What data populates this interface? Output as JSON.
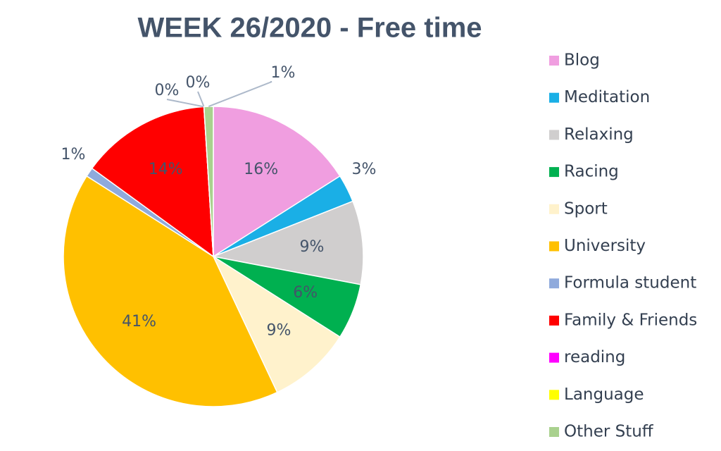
{
  "chart_data": {
    "type": "pie",
    "title": "WEEK 26/2020 - Free time",
    "categories": [
      "Blog",
      "Meditation",
      "Relaxing",
      "Racing",
      "Sport",
      "University",
      "Formula student",
      "Family & Friends",
      "reading",
      "Language",
      "Other Stuff"
    ],
    "values": [
      16,
      3,
      9,
      6,
      9,
      41,
      1,
      14,
      0,
      0,
      1
    ],
    "value_labels": [
      "16%",
      "3%",
      "9%",
      "6%",
      "9%",
      "41%",
      "1%",
      "14%",
      "0%",
      "0%",
      "1%"
    ],
    "colors": [
      "#f09ee0",
      "#1aafe6",
      "#d0cece",
      "#00b050",
      "#fff2cc",
      "#ffc000",
      "#8faadc",
      "#ff0000",
      "#ff00ff",
      "#ffff00",
      "#a9d18e"
    ],
    "legend": "right"
  }
}
